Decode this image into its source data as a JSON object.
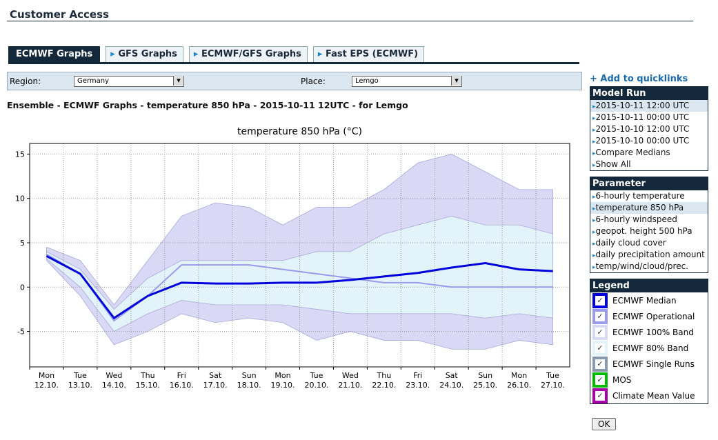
{
  "header": {
    "title": "Customer Access"
  },
  "tabs": [
    "ECMWF Graphs",
    "GFS Graphs",
    "ECMWF/GFS Graphs",
    "Fast EPS (ECMWF)"
  ],
  "filters": {
    "region_label": "Region:",
    "region": "Germany",
    "place_label": "Place:",
    "place": "Lemgo"
  },
  "heading": "Ensemble - ECMWF Graphs - temperature 850 hPa - 2015-10-11 12UTC - for Lemgo",
  "quicklinks": "+ Add to quicklinks",
  "model_run": {
    "title": "Model Run",
    "items": [
      "2015-10-11 12:00 UTC",
      "2015-10-11 00:00 UTC",
      "2015-10-10 12:00 UTC",
      "2015-10-10 00:00 UTC",
      "Compare Medians",
      "Show All"
    ]
  },
  "parameter": {
    "title": "Parameter",
    "items": [
      "6-hourly temperature",
      "temperature 850 hPa",
      "6-hourly windspeed",
      "geopot. height 500 hPa",
      "daily cloud cover",
      "daily precipitation amount",
      "temp/wind/cloud/prec."
    ]
  },
  "legend_title": "Legend",
  "ok": "OK",
  "chart_data": {
    "type": "line",
    "title": "temperature 850 hPa (°C)",
    "categories": [
      [
        "Mon",
        "12.10."
      ],
      [
        "Tue",
        "13.10."
      ],
      [
        "Wed",
        "14.10."
      ],
      [
        "Thu",
        "15.10."
      ],
      [
        "Fri",
        "16.10."
      ],
      [
        "Sat",
        "17.10."
      ],
      [
        "Sun",
        "18.10."
      ],
      [
        "Mon",
        "19.10."
      ],
      [
        "Tue",
        "20.10."
      ],
      [
        "Wed",
        "21.10."
      ],
      [
        "Thu",
        "22.10."
      ],
      [
        "Fri",
        "23.10."
      ],
      [
        "Sat",
        "24.10."
      ],
      [
        "Sun",
        "25.10."
      ],
      [
        "Mon",
        "26.10."
      ],
      [
        "Tue",
        "27.10."
      ]
    ],
    "ylim": [
      -9,
      16.2
    ],
    "yticks": [
      -5,
      0,
      5,
      10,
      15
    ],
    "grid": true,
    "bands": [
      {
        "name": "ECMWF 100% Band",
        "color": "#d9d9f5",
        "upper": [
          4.5,
          3,
          -2,
          3,
          8,
          9.5,
          9,
          7,
          9,
          9,
          11,
          14,
          15,
          13,
          11,
          11
        ],
        "lower": [
          3,
          -1,
          -6.5,
          -5,
          -3,
          -4,
          -3.5,
          -4,
          -6,
          -5,
          -6,
          -6,
          -7,
          -7,
          -6,
          -6.5
        ]
      },
      {
        "name": "ECMWF 80% Band",
        "color": "#e3f3fa",
        "upper": [
          4,
          2,
          -2.5,
          1,
          3,
          3,
          3,
          3,
          4,
          4,
          6,
          7,
          8,
          7,
          7,
          6
        ],
        "lower": [
          3.2,
          0,
          -5,
          -3,
          -1.5,
          -2,
          -2,
          -2,
          -2.5,
          -3,
          -3,
          -3,
          -3,
          -3.5,
          -3,
          -3.5
        ]
      }
    ],
    "series": [
      {
        "name": "ECMWF Operational",
        "color": "#9a9aee",
        "values": [
          3.7,
          1.5,
          -3.8,
          -1,
          2.5,
          2.5,
          2.5,
          2,
          1.5,
          1,
          0.5,
          0.5,
          0,
          0,
          0,
          0
        ]
      },
      {
        "name": "ECMWF Median",
        "color": "#0000dd",
        "values": [
          3.5,
          1.5,
          -3.5,
          -1,
          0.5,
          0.4,
          0.4,
          0.5,
          0.5,
          0.8,
          1.2,
          1.6,
          2.2,
          2.7,
          2,
          1.8
        ]
      }
    ],
    "extras": [
      {
        "name": "ECMWF Single Runs",
        "color": "#8a9aae"
      },
      {
        "name": "MOS",
        "color": "#00bb00"
      },
      {
        "name": "Climate Mean Value",
        "color": "#aa00aa"
      }
    ]
  }
}
